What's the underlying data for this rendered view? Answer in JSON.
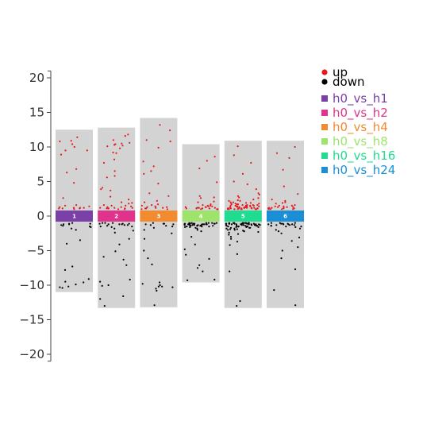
{
  "chart_data": {
    "type": "scatter",
    "ylim": [
      -21,
      21
    ],
    "y_ticks": [
      20,
      15,
      10,
      5,
      0,
      -5,
      -10,
      -15,
      -20
    ],
    "y_tick_labels": [
      "20",
      "15",
      "10",
      "5",
      "0",
      "−5",
      "−10",
      "−15",
      "−20"
    ],
    "point_legend": [
      {
        "label": "up",
        "color": "#e41a1c"
      },
      {
        "label": "down",
        "color": "#000000"
      }
    ],
    "groups": [
      {
        "label": "1",
        "legend": "h0_vs_h1",
        "color": "#7b3fa8",
        "bg_range": [
          -11.0,
          12.5
        ],
        "up": [
          4.8,
          6.8,
          8.9,
          9.5,
          10.4,
          10.0,
          10.8,
          9.5,
          11.4,
          10.9,
          6.3,
          1.2,
          1.1,
          1.3,
          1.0,
          1.5,
          1.2,
          1.1,
          1.6,
          1.2,
          2.6,
          1.1,
          1.4
        ],
        "down": [
          -1.1,
          -1.3,
          -1.0,
          -1.5,
          -1.2,
          -1.8,
          -2.0,
          -3.5,
          -4.0,
          -1.4,
          -1.6,
          -7.3,
          -7.8,
          -9.9,
          -10.2,
          -10.4,
          -9.6,
          -1.2,
          -1.1,
          -10.3,
          -9.1,
          -9.5
        ]
      },
      {
        "label": "2",
        "legend": "h0_vs_h2",
        "color": "#e0338b",
        "bg_range": [
          -13.3,
          12.8
        ],
        "up": [
          10.6,
          10.4,
          10.1,
          9.8,
          9.2,
          11.6,
          10.5,
          7.7,
          5.6,
          5.8,
          4.1,
          3.9,
          11.0,
          10.2,
          2.0,
          1.9,
          3.7,
          8.2,
          9.1,
          10.3,
          11.8,
          6.5,
          1.2,
          1.1,
          1.3,
          1.0,
          1.6,
          1.1,
          1.5,
          2.4,
          1.2,
          1.4,
          1.8,
          1.1,
          1.3,
          1.0,
          1.2,
          2.8,
          1.5,
          1.1
        ],
        "down": [
          -1.0,
          -1.1,
          -1.3,
          -1.2,
          -1.5,
          -1.1,
          -1.6,
          -1.2,
          -1.8,
          -1.0,
          -2.1,
          -2.4,
          -3.3,
          -4.1,
          -5.1,
          -5.9,
          -7.1,
          -9.2,
          -10.0,
          -12.0,
          -13.0,
          -6.3,
          -11.6,
          -1.2,
          -1.1,
          -1.4,
          -1.3,
          -1.0,
          -1.5,
          -10.1,
          -9.5
        ]
      },
      {
        "label": "3",
        "legend": "h0_vs_h4",
        "color": "#f28a30",
        "bg_range": [
          -13.2,
          14.2
        ],
        "up": [
          13.2,
          12.4,
          10.8,
          11.0,
          9.9,
          7.9,
          6.5,
          4.7,
          6.1,
          7.2,
          3.3,
          1.6,
          2.9,
          1.1,
          1.3,
          1.0,
          1.2,
          2.0,
          1.4,
          1.1,
          1.7,
          1.2,
          1.5,
          1.0,
          2.2,
          1.3
        ],
        "down": [
          -1.0,
          -1.2,
          -1.4,
          -1.1,
          -1.3,
          -1.7,
          -2.0,
          -2.5,
          -3.3,
          -5.0,
          -6.1,
          -7.0,
          -9.8,
          -10.2,
          -10.8,
          -12.9,
          -10.0,
          -10.3,
          -9.6,
          -10.5,
          -1.2,
          -1.5,
          -1.1,
          -10.2
        ]
      },
      {
        "label": "4",
        "legend": "h0_vs_h8",
        "color": "#9ee36b",
        "bg_range": [
          -9.6,
          10.4
        ],
        "up": [
          8.6,
          8.0,
          6.9,
          4.9,
          2.7,
          2.0,
          2.6,
          1.5,
          1.7,
          1.2,
          1.1,
          1.0,
          1.3,
          1.4,
          1.2,
          1.1,
          1.0,
          1.6,
          1.3,
          1.2,
          1.1,
          1.5,
          1.0,
          1.2,
          2.1,
          1.4,
          1.3,
          1.1,
          2.9,
          1.0
        ],
        "down": [
          -1.0,
          -1.1,
          -1.2,
          -1.3,
          -1.4,
          -1.5,
          -1.1,
          -1.2,
          -1.0,
          -1.3,
          -1.6,
          -1.4,
          -1.1,
          -1.2,
          -1.0,
          -1.5,
          -1.3,
          -1.1,
          -1.2,
          -1.4,
          -1.0,
          -1.6,
          -1.7,
          -1.3,
          -1.1,
          -1.2,
          -1.5,
          -1.0,
          -1.4,
          -1.3,
          -2.0,
          -2.2,
          -4.1,
          -4.8,
          -5.6,
          -6.2,
          -7.1,
          -8.0,
          -9.2,
          -9.3,
          -7.5,
          -3.0,
          -1.8,
          -1.1,
          -1.2,
          -1.0,
          -1.4,
          -1.3,
          -1.2,
          -1.1
        ]
      },
      {
        "label": "5",
        "legend": "h0_vs_h16",
        "color": "#1fdc90",
        "bg_range": [
          -13.3,
          10.9
        ],
        "up": [
          10.1,
          8.8,
          7.7,
          6.1,
          5.0,
          4.6,
          3.9,
          3.3,
          2.7,
          2.6,
          2.4,
          2.2,
          2.2,
          2.0,
          2.0,
          1.9,
          1.9,
          1.8,
          1.8,
          1.7,
          1.7,
          1.7,
          1.6,
          1.6,
          1.6,
          1.5,
          1.5,
          1.5,
          1.5,
          1.4,
          1.4,
          1.4,
          1.4,
          1.3,
          1.3,
          1.3,
          1.3,
          1.3,
          1.2,
          1.2,
          1.2,
          1.2,
          1.2,
          1.2,
          1.1,
          1.1,
          1.1,
          1.1,
          1.1,
          1.1,
          1.1,
          1.0,
          1.0,
          1.0,
          1.0,
          1.0,
          1.0,
          1.0,
          1.0,
          2.9,
          2.3,
          3.1,
          1.5,
          1.3,
          1.2,
          1.1,
          1.0,
          1.8,
          1.6,
          1.4
        ],
        "down": [
          -1.0,
          -1.0,
          -1.0,
          -1.0,
          -1.0,
          -1.0,
          -1.0,
          -1.0,
          -1.1,
          -1.1,
          -1.1,
          -1.1,
          -1.1,
          -1.1,
          -1.1,
          -1.2,
          -1.2,
          -1.2,
          -1.2,
          -1.2,
          -1.2,
          -1.3,
          -1.3,
          -1.3,
          -1.3,
          -1.3,
          -1.4,
          -1.4,
          -1.4,
          -1.4,
          -1.5,
          -1.5,
          -1.5,
          -1.5,
          -1.6,
          -1.6,
          -1.6,
          -1.7,
          -1.7,
          -1.7,
          -1.8,
          -1.8,
          -1.9,
          -1.9,
          -2.0,
          -2.0,
          -2.1,
          -2.2,
          -2.2,
          -2.3,
          -2.4,
          -2.6,
          -2.7,
          -3.0,
          -3.3,
          -3.7,
          -4.2,
          -5.5,
          -8.0,
          -12.3,
          -13.0,
          -1.1,
          -1.2,
          -1.3,
          -1.4,
          -1.0,
          -1.5,
          -1.2,
          -1.3,
          -1.1
        ]
      },
      {
        "label": "6",
        "legend": "h0_vs_h24",
        "color": "#1a8fd6",
        "bg_range": [
          -13.3,
          10.9
        ],
        "up": [
          10.0,
          9.1,
          8.4,
          6.7,
          4.3,
          3.2,
          2.4,
          2.2,
          1.9,
          1.8,
          1.6,
          1.5,
          1.4,
          1.3,
          1.2,
          1.2,
          1.1,
          1.0,
          1.0,
          1.3,
          1.1,
          1.4,
          1.0,
          1.5,
          1.2,
          2.0,
          1.1,
          1.3,
          1.0
        ],
        "down": [
          -1.0,
          -1.1,
          -1.2,
          -1.3,
          -1.4,
          -1.5,
          -1.6,
          -1.8,
          -2.0,
          -2.2,
          -2.5,
          -3.1,
          -3.6,
          -4.5,
          -5.0,
          -6.1,
          -7.7,
          -10.7,
          -12.9,
          -1.1,
          -1.2,
          -1.0,
          -1.3,
          -1.4,
          -1.2,
          -1.1,
          -1.0,
          -1.5,
          -1.3,
          -1.2
        ]
      }
    ]
  }
}
